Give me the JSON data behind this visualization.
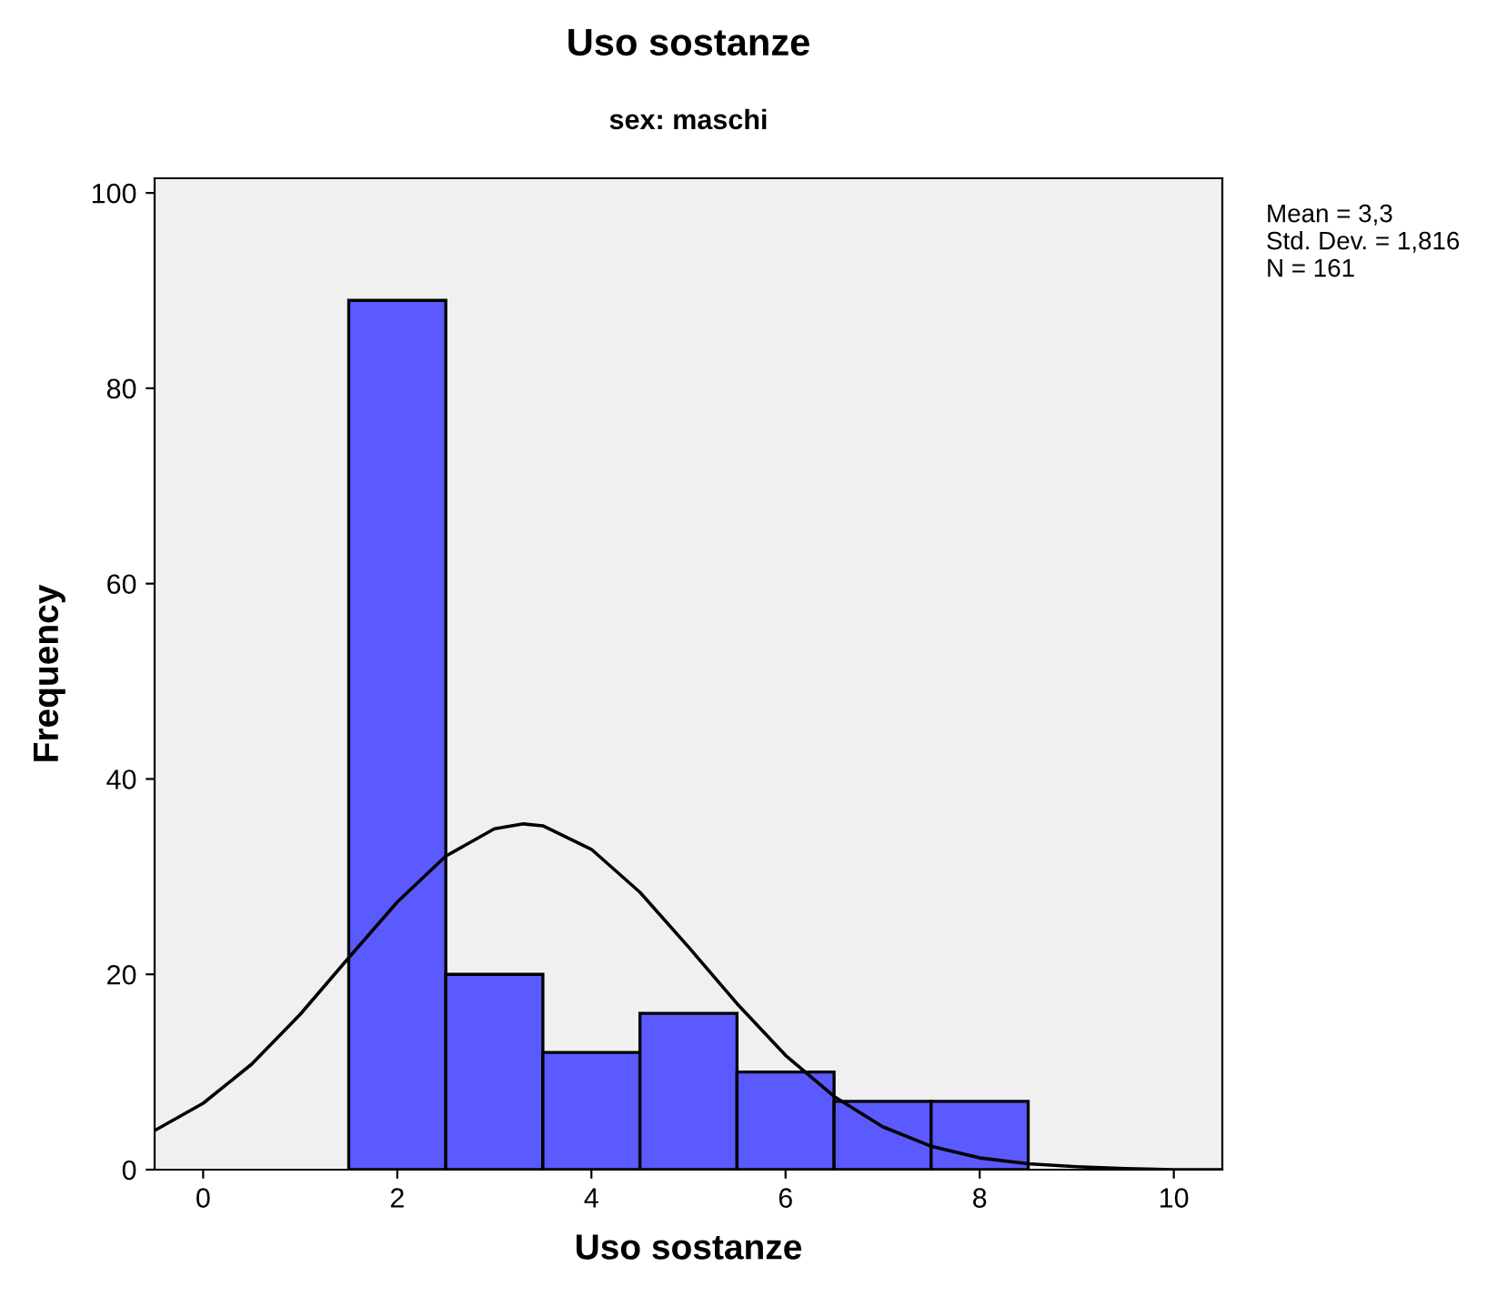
{
  "chart_data": {
    "type": "histogram",
    "title": "Uso sostanze",
    "subtitle": "sex: maschi",
    "xlabel": "Uso sostanze",
    "ylabel": "Frequency",
    "bins": [
      1.5,
      2.5,
      3.5,
      4.5,
      5.5,
      6.5,
      7.5,
      8.5
    ],
    "values": [
      89,
      20,
      12,
      16,
      10,
      7,
      7
    ],
    "color": "#5a5aff",
    "series": [
      {
        "type": "line",
        "color": "#000000",
        "x": [
          -0.5,
          0,
          0.5,
          1,
          1.5,
          2,
          2.5,
          3,
          3.3,
          3.5,
          4,
          4.5,
          5,
          5.5,
          6,
          6.5,
          7,
          7.5,
          8,
          8.5,
          9,
          9.5,
          10,
          10.5
        ],
        "values": [
          4.0,
          6.8,
          10.8,
          15.9,
          21.7,
          27.4,
          32.1,
          34.9,
          35.4,
          35.2,
          32.8,
          28.4,
          22.8,
          17.0,
          11.7,
          7.5,
          4.4,
          2.4,
          1.2,
          0.6,
          0.3,
          0.1,
          0.0,
          0.0
        ]
      }
    ],
    "xlim": [
      -0.5,
      10.5
    ],
    "xticks": [
      0,
      2,
      4,
      6,
      8,
      10
    ],
    "ylim": [
      0,
      101.5
    ],
    "yticks": [
      0,
      20,
      40,
      60,
      80,
      100
    ],
    "grid": false,
    "marker": "none",
    "line_style": "solid",
    "annotations": [
      "Mean = 3,3",
      "Std. Dev. = 1,816",
      "N = 161"
    ]
  }
}
